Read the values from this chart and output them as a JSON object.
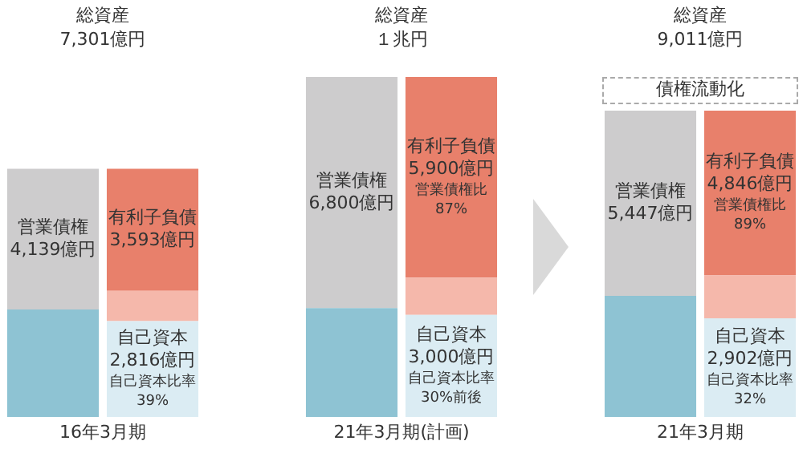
{
  "chart_data": {
    "type": "bar",
    "stacked": true,
    "categories": [
      "16年3月期",
      null,
      null,
      "21年3月期(計画)",
      null,
      null,
      "21年3月期",
      null
    ],
    "ylim": [
      0,
      10000
    ],
    "tick_labels": "x",
    "grid": false,
    "legend": false,
    "annotations": [
      "総資産7,301億円",
      "総資産１兆円",
      "総資産9,011億円",
      "債権流動化",
      "営業債権比87%",
      "営業債権比89%",
      "自己資本比率39%",
      "自己資本比率30%前後",
      "自己資本比率32%"
    ],
    "series": [
      {
        "color": "#8ec3d3",
        "values": [
          3162,
          null,
          null,
          3200,
          null,
          null,
          3564,
          null
        ]
      },
      {
        "name": "営業債権",
        "color": "#cdcccd",
        "values": [
          4139,
          null,
          null,
          6800,
          null,
          null,
          5447,
          null
        ],
        "value_labels": [
          "4,139億円",
          null,
          null,
          "6,800億円",
          null,
          null,
          "5,447億円",
          null
        ]
      },
      {
        "name": "自己資本",
        "color": "#dbecf3",
        "values": [
          null,
          2816,
          null,
          null,
          3000,
          null,
          null,
          2902
        ],
        "value_labels": [
          null,
          "2,816億円",
          null,
          null,
          "3,000億円",
          null,
          null,
          "2,902億円"
        ]
      },
      {
        "color": "#f5b8ab",
        "values": [
          null,
          892,
          null,
          null,
          1100,
          null,
          null,
          1263
        ]
      },
      {
        "name": "有利子負債",
        "color": "#e8806b",
        "values": [
          null,
          3593,
          null,
          null,
          5900,
          null,
          null,
          4846
        ],
        "value_labels": [
          null,
          "3,593億円",
          null,
          null,
          "5,900億円",
          null,
          null,
          "4,846億円"
        ]
      }
    ]
  }
}
